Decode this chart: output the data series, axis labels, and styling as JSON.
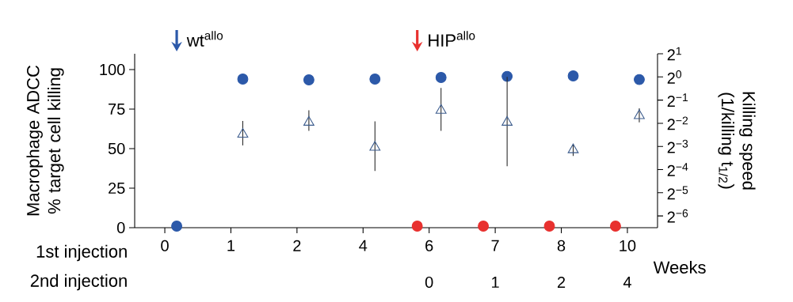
{
  "chart_data": {
    "type": "scatter",
    "categories": [
      "0",
      "1",
      "2",
      "4",
      "6",
      "7",
      "8",
      "10"
    ],
    "xlabel": "Weeks",
    "ylabel": "Macrophage ADCC % target cell killing",
    "y2label": "Killing speed (1/killing t$_{1/2}$)",
    "ylim": [
      0,
      110
    ],
    "yticks": [
      0,
      25,
      50,
      75,
      100
    ],
    "y2lim": [
      0.011,
      2
    ],
    "y2ticks": [
      {
        "value": 0.015625,
        "label": "2$^{−6}$"
      },
      {
        "value": 0.03125,
        "label": "2$^{−5}$"
      },
      {
        "value": 0.0625,
        "label": "2$^{−4}$"
      },
      {
        "value": 0.125,
        "label": "2$^{−3}$"
      },
      {
        "value": 0.25,
        "label": "2$^{−2}$"
      },
      {
        "value": 0.5,
        "label": "2$^{−1}$"
      },
      {
        "value": 1,
        "label": "2$^{0}$"
      },
      {
        "value": 2,
        "label": "2$^{1}$"
      }
    ],
    "log": "y2",
    "series": [
      {
        "color": "#2c59a9",
        "marker": "circle",
        "values": [
          1,
          94,
          93.5,
          94,
          95,
          95.7,
          96,
          93.7
        ]
      },
      {
        "color": "#e8312f",
        "marker": "circle",
        "values": [
          null,
          null,
          null,
          null,
          1,
          1,
          1,
          1
        ]
      },
      {
        "color": "#3b5b8c",
        "marker": "triangle",
        "axis": "y2",
        "values": [
          null,
          0.18,
          0.257,
          0.122,
          0.368,
          0.257,
          0.113,
          0.314
        ],
        "errors": [
          null,
          [
            0.129,
            0.268
          ],
          [
            0.199,
            0.368
          ],
          [
            0.06,
            0.264
          ],
          [
            0.199,
            0.717
          ],
          [
            0.069,
            1.0
          ],
          [
            0.094,
            0.133
          ],
          [
            0.257,
            0.392
          ]
        ]
      }
    ],
    "annotations": [
      "wt$^{allo}$",
      "HIP$^{allo}$",
      "1st injection",
      "2nd injection",
      "0",
      "1",
      "2",
      "4"
    ]
  }
}
